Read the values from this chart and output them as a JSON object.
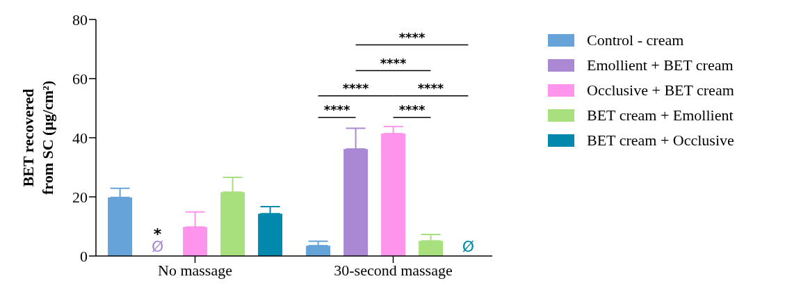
{
  "chart_data": {
    "type": "bar",
    "ylabel": "BET recovered from SC (μg/cm²)",
    "categories": [
      "No massage",
      "30-second massage"
    ],
    "series": [
      {
        "name": "Control - cream",
        "color": "#66a3d9",
        "values": [
          19.8,
          3.5
        ],
        "errors": [
          [
            19.8,
            22.9
          ],
          [
            3.5,
            5.0
          ]
        ]
      },
      {
        "name": "Emollient + BET cream",
        "color": "#aa88d4",
        "values": [
          null,
          36.2
        ],
        "errors": [
          null,
          [
            36.2,
            43.2
          ]
        ],
        "value_labels": [
          "Ø",
          null
        ]
      },
      {
        "name": "Occlusive + BET cream",
        "color": "#ff94ec",
        "values": [
          9.8,
          41.4
        ],
        "errors": [
          [
            9.8,
            14.9
          ],
          [
            41.4,
            43.8
          ]
        ]
      },
      {
        "name": "BET cream + Emollient",
        "color": "#a8e07e",
        "values": [
          21.6,
          5.1
        ],
        "errors": [
          [
            21.6,
            26.6
          ],
          [
            5.1,
            7.3
          ]
        ]
      },
      {
        "name": "BET cream + Occlusive",
        "color": "#0088ad",
        "values": [
          14.3,
          null
        ],
        "errors": [
          [
            14.3,
            16.7
          ],
          null
        ],
        "value_labels": [
          null,
          "Ø"
        ]
      }
    ],
    "ylim": [
      0,
      80
    ],
    "yticks": [
      0,
      20,
      40,
      60,
      80
    ],
    "grid": false,
    "legend": "right",
    "annotations": [
      "*",
      "****",
      "****",
      "****",
      "****",
      "****",
      "****"
    ]
  }
}
